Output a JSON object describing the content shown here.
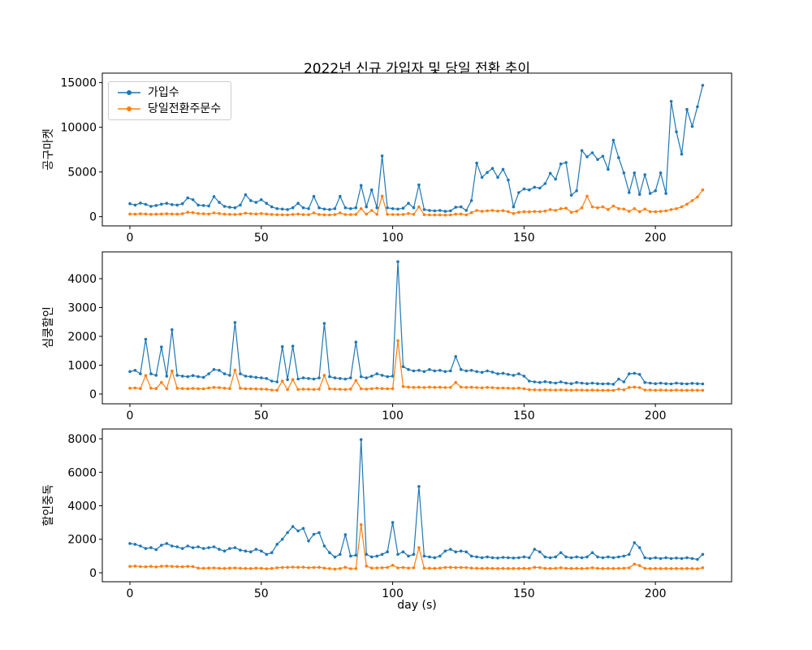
{
  "figure": {
    "title": "2022년 신규 가입자 및 당일 전환 추이",
    "xlabel": "day (s)",
    "background": "#ffffff",
    "axis_color": "#000000"
  },
  "legend": {
    "entries": [
      {
        "label": "가입수",
        "color": "#1f77b4"
      },
      {
        "label": "당일전환주문수",
        "color": "#ff7f0e"
      }
    ]
  },
  "chart_data": [
    {
      "type": "line",
      "ylabel": "공구마켓",
      "xlim": [
        -10.5,
        229
      ],
      "ylim": [
        -1030,
        16060
      ],
      "xticks": [
        0,
        50,
        100,
        150,
        200
      ],
      "yticks": [
        0,
        5000,
        10000,
        15000
      ],
      "grid": false,
      "legend_position": "upper-left",
      "x": [
        0,
        2,
        4,
        6,
        8,
        10,
        12,
        14,
        16,
        18,
        20,
        22,
        24,
        26,
        28,
        30,
        32,
        34,
        36,
        38,
        40,
        42,
        44,
        46,
        48,
        50,
        52,
        54,
        56,
        58,
        60,
        62,
        64,
        66,
        68,
        70,
        72,
        74,
        76,
        78,
        80,
        82,
        84,
        86,
        88,
        90,
        92,
        94,
        96,
        98,
        100,
        102,
        104,
        106,
        108,
        110,
        112,
        114,
        116,
        118,
        120,
        122,
        124,
        126,
        128,
        130,
        132,
        134,
        136,
        138,
        140,
        142,
        144,
        146,
        148,
        150,
        152,
        154,
        156,
        158,
        160,
        162,
        164,
        166,
        168,
        170,
        172,
        174,
        176,
        178,
        180,
        182,
        184,
        186,
        188,
        190,
        192,
        194,
        196,
        198,
        200,
        202,
        204,
        206,
        208,
        210,
        212,
        214,
        216,
        218
      ],
      "series": [
        {
          "name": "가입수",
          "key": "subscribers",
          "color": "#1f77b4",
          "values": [
            1450,
            1300,
            1520,
            1380,
            1150,
            1250,
            1400,
            1500,
            1350,
            1300,
            1450,
            2100,
            1900,
            1300,
            1250,
            1200,
            2250,
            1600,
            1150,
            1050,
            1000,
            1300,
            2450,
            1800,
            1600,
            1900,
            1500,
            1100,
            900,
            850,
            800,
            1000,
            1500,
            1000,
            900,
            2270,
            1000,
            850,
            800,
            900,
            2270,
            1000,
            900,
            1000,
            3500,
            1100,
            3000,
            1000,
            6800,
            1000,
            900,
            850,
            950,
            1500,
            1000,
            3550,
            800,
            700,
            650,
            700,
            600,
            650,
            1050,
            1100,
            700,
            1800,
            6000,
            4400,
            4950,
            5400,
            4400,
            5300,
            4100,
            1100,
            2700,
            3100,
            3000,
            3300,
            3200,
            3700,
            4850,
            4200,
            5900,
            6050,
            2400,
            2900,
            7400,
            6700,
            7150,
            6400,
            6760,
            5300,
            8550,
            6600,
            4900,
            2700,
            4900,
            2500,
            4700,
            2600,
            2900,
            4900,
            2600,
            12900,
            9500,
            7000,
            12000,
            10100,
            12300,
            14700
          ]
        },
        {
          "name": "당일전환주문수",
          "key": "same-day-orders",
          "color": "#ff7f0e",
          "values": [
            300,
            280,
            320,
            300,
            260,
            280,
            300,
            320,
            300,
            280,
            320,
            500,
            450,
            350,
            320,
            300,
            420,
            350,
            280,
            260,
            250,
            280,
            400,
            330,
            300,
            350,
            300,
            250,
            220,
            210,
            200,
            250,
            300,
            230,
            220,
            420,
            240,
            210,
            200,
            230,
            420,
            240,
            230,
            250,
            900,
            280,
            700,
            260,
            2300,
            260,
            240,
            230,
            250,
            350,
            260,
            1100,
            220,
            200,
            190,
            200,
            180,
            200,
            280,
            300,
            200,
            450,
            700,
            600,
            650,
            700,
            620,
            680,
            560,
            350,
            500,
            550,
            540,
            580,
            560,
            620,
            800,
            700,
            900,
            950,
            500,
            600,
            1000,
            2300,
            1100,
            1000,
            1100,
            800,
            1200,
            900,
            850,
            600,
            900,
            550,
            850,
            560,
            550,
            600,
            650,
            800,
            900,
            1100,
            1400,
            1800,
            2200,
            3000
          ]
        }
      ]
    },
    {
      "type": "line",
      "ylabel": "심쿵할인",
      "xlim": [
        -10.5,
        229
      ],
      "ylim": [
        -340,
        4930
      ],
      "xticks": [
        0,
        50,
        100,
        150,
        200
      ],
      "yticks": [
        0,
        1000,
        2000,
        3000,
        4000
      ],
      "grid": false,
      "x": [
        0,
        2,
        4,
        6,
        8,
        10,
        12,
        14,
        16,
        18,
        20,
        22,
        24,
        26,
        28,
        30,
        32,
        34,
        36,
        38,
        40,
        42,
        44,
        46,
        48,
        50,
        52,
        54,
        56,
        58,
        60,
        62,
        64,
        66,
        68,
        70,
        72,
        74,
        76,
        78,
        80,
        82,
        84,
        86,
        88,
        90,
        92,
        94,
        96,
        98,
        100,
        102,
        104,
        106,
        108,
        110,
        112,
        114,
        116,
        118,
        120,
        122,
        124,
        126,
        128,
        130,
        132,
        134,
        136,
        138,
        140,
        142,
        144,
        146,
        148,
        150,
        152,
        154,
        156,
        158,
        160,
        162,
        164,
        166,
        168,
        170,
        172,
        174,
        176,
        178,
        180,
        182,
        184,
        186,
        188,
        190,
        192,
        194,
        196,
        198,
        200,
        202,
        204,
        206,
        208,
        210,
        212,
        214,
        216,
        218
      ],
      "series": [
        {
          "name": "가입수",
          "key": "subscribers",
          "color": "#1f77b4",
          "values": [
            780,
            820,
            700,
            1900,
            700,
            650,
            1630,
            620,
            2230,
            650,
            620,
            600,
            640,
            600,
            580,
            700,
            850,
            820,
            700,
            650,
            2480,
            700,
            620,
            600,
            580,
            560,
            540,
            450,
            420,
            1640,
            500,
            1660,
            520,
            560,
            540,
            520,
            560,
            2450,
            600,
            560,
            540,
            520,
            560,
            1800,
            600,
            560,
            620,
            700,
            650,
            600,
            620,
            4590,
            950,
            850,
            800,
            820,
            780,
            850,
            800,
            820,
            780,
            800,
            1300,
            850,
            800,
            820,
            780,
            750,
            800,
            760,
            700,
            720,
            680,
            650,
            700,
            620,
            450,
            420,
            400,
            430,
            400,
            380,
            420,
            380,
            360,
            400,
            380,
            360,
            380,
            360,
            350,
            360,
            340,
            520,
            420,
            700,
            720,
            680,
            400,
            380,
            360,
            380,
            360,
            350,
            380,
            360,
            350,
            370,
            360,
            350
          ]
        },
        {
          "name": "당일전환주문수",
          "key": "same-day-orders",
          "color": "#ff7f0e",
          "values": [
            200,
            210,
            190,
            640,
            200,
            190,
            400,
            185,
            800,
            200,
            190,
            185,
            195,
            185,
            180,
            210,
            230,
            220,
            200,
            190,
            830,
            200,
            185,
            180,
            175,
            170,
            165,
            140,
            130,
            450,
            150,
            500,
            160,
            170,
            165,
            160,
            170,
            650,
            180,
            170,
            165,
            160,
            170,
            470,
            180,
            170,
            185,
            200,
            190,
            180,
            185,
            1850,
            260,
            240,
            230,
            235,
            225,
            240,
            230,
            235,
            225,
            230,
            400,
            240,
            230,
            235,
            225,
            215,
            230,
            220,
            205,
            210,
            200,
            195,
            205,
            185,
            150,
            145,
            140,
            148,
            140,
            135,
            145,
            135,
            130,
            140,
            135,
            130,
            135,
            130,
            128,
            130,
            125,
            170,
            145,
            230,
            240,
            225,
            140,
            135,
            130,
            135,
            130,
            128,
            135,
            130,
            128,
            133,
            130,
            128
          ]
        }
      ]
    },
    {
      "type": "line",
      "ylabel": "할인중독",
      "xlim": [
        -10.5,
        229
      ],
      "ylim": [
        -535,
        8585
      ],
      "xticks": [
        0,
        50,
        100,
        150,
        200
      ],
      "yticks": [
        0,
        2000,
        4000,
        6000,
        8000
      ],
      "grid": false,
      "x": [
        0,
        2,
        4,
        6,
        8,
        10,
        12,
        14,
        16,
        18,
        20,
        22,
        24,
        26,
        28,
        30,
        32,
        34,
        36,
        38,
        40,
        42,
        44,
        46,
        48,
        50,
        52,
        54,
        56,
        58,
        60,
        62,
        64,
        66,
        68,
        70,
        72,
        74,
        76,
        78,
        80,
        82,
        84,
        86,
        88,
        90,
        92,
        94,
        96,
        98,
        100,
        102,
        104,
        106,
        108,
        110,
        112,
        114,
        116,
        118,
        120,
        122,
        124,
        126,
        128,
        130,
        132,
        134,
        136,
        138,
        140,
        142,
        144,
        146,
        148,
        150,
        152,
        154,
        156,
        158,
        160,
        162,
        164,
        166,
        168,
        170,
        172,
        174,
        176,
        178,
        180,
        182,
        184,
        186,
        188,
        190,
        192,
        194,
        196,
        198,
        200,
        202,
        204,
        206,
        208,
        210,
        212,
        214,
        216,
        218
      ],
      "series": [
        {
          "name": "가입수",
          "key": "subscribers",
          "color": "#1f77b4",
          "values": [
            1750,
            1700,
            1600,
            1450,
            1500,
            1380,
            1650,
            1750,
            1600,
            1550,
            1450,
            1600,
            1500,
            1550,
            1450,
            1500,
            1550,
            1400,
            1300,
            1450,
            1500,
            1350,
            1300,
            1250,
            1400,
            1300,
            1100,
            1200,
            1700,
            2000,
            2400,
            2760,
            2500,
            2650,
            1900,
            2300,
            2400,
            1600,
            1200,
            940,
            1100,
            2280,
            1000,
            1050,
            7950,
            1100,
            950,
            1000,
            1100,
            1250,
            3000,
            1100,
            1250,
            1000,
            1100,
            5150,
            1000,
            950,
            900,
            1000,
            1300,
            1400,
            1250,
            1300,
            1250,
            1000,
            950,
            900,
            950,
            900,
            880,
            920,
            900,
            880,
            900,
            950,
            900,
            1400,
            1250,
            950,
            900,
            950,
            1200,
            950,
            900,
            950,
            900,
            950,
            1200,
            950,
            900,
            950,
            900,
            950,
            1000,
            1100,
            1800,
            1500,
            900,
            850,
            900,
            850,
            900,
            850,
            880,
            850,
            900,
            850,
            800,
            1100
          ]
        },
        {
          "name": "당일전환주문수",
          "key": "same-day-orders",
          "color": "#ff7f0e",
          "values": [
            380,
            400,
            370,
            360,
            380,
            350,
            390,
            400,
            380,
            370,
            360,
            380,
            370,
            280,
            270,
            280,
            290,
            270,
            260,
            280,
            290,
            270,
            260,
            255,
            280,
            270,
            240,
            260,
            300,
            320,
            330,
            340,
            330,
            335,
            300,
            320,
            330,
            280,
            250,
            220,
            250,
            330,
            240,
            250,
            2870,
            400,
            280,
            290,
            300,
            320,
            450,
            290,
            320,
            280,
            300,
            1500,
            280,
            270,
            260,
            280,
            320,
            330,
            310,
            320,
            310,
            280,
            270,
            260,
            270,
            260,
            255,
            262,
            258,
            255,
            258,
            265,
            258,
            330,
            310,
            265,
            258,
            265,
            300,
            265,
            258,
            265,
            258,
            265,
            300,
            265,
            258,
            265,
            258,
            265,
            275,
            295,
            520,
            430,
            260,
            250,
            258,
            250,
            258,
            250,
            255,
            250,
            258,
            250,
            240,
            300
          ]
        }
      ]
    }
  ]
}
